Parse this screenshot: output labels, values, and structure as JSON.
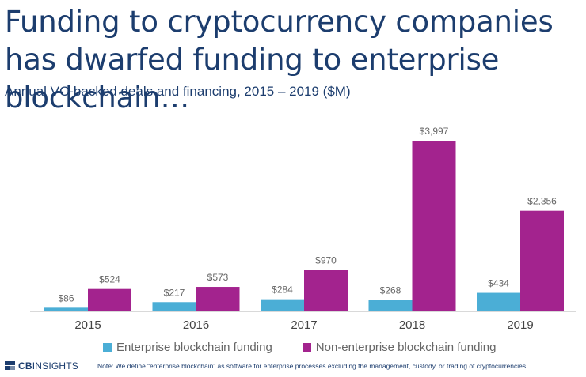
{
  "title": "Funding to cryptocurrency companies has dwarfed funding to enterprise blockchain…",
  "subtitle": "Annual VC-backed deals and financing, 2015 – 2019 ($M)",
  "chart_data": {
    "type": "bar",
    "categories": [
      "2015",
      "2016",
      "2017",
      "2018",
      "2019"
    ],
    "series": [
      {
        "name": "Enterprise blockchain funding",
        "values": [
          86,
          217,
          284,
          268,
          434
        ],
        "labels": [
          "$86",
          "$217",
          "$284",
          "$268",
          "$434"
        ],
        "color": "#4baed6"
      },
      {
        "name": "Non-enterprise blockchain funding",
        "values": [
          524,
          573,
          970,
          3997,
          2356
        ],
        "labels": [
          "$524",
          "$573",
          "$970",
          "$3,997",
          "$2,356"
        ],
        "color": "#a3238e"
      }
    ],
    "ylim": [
      0,
      4000
    ],
    "grid": false,
    "legend_position": "bottom"
  },
  "footer": {
    "logo_bold": "CB",
    "logo_rest": "INSIGHTS",
    "note": "Note: We define “enterprise blockchain” as software for enterprise processes excluding the management, custody, or trading of cryptocurrencies."
  }
}
